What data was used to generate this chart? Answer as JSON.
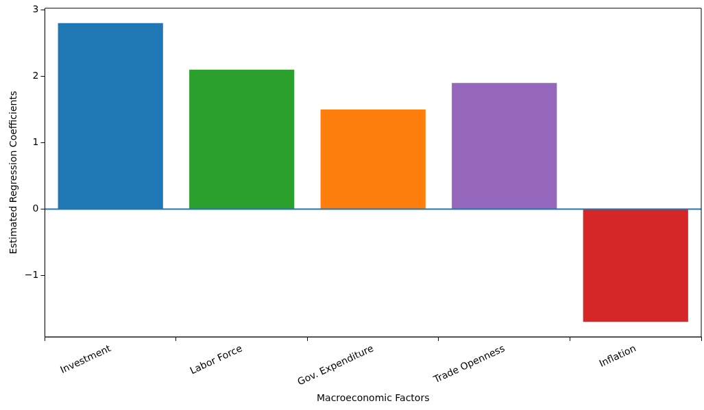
{
  "chart_data": {
    "type": "bar",
    "xlabel": "Macroeconomic Factors",
    "ylabel": "Estimated Regression Coefficients",
    "categories": [
      "Investment",
      "Labor Force",
      "Gov. Expenditure",
      "Trade Openness",
      "Inflation"
    ],
    "values": [
      2.8,
      2.1,
      1.5,
      1.9,
      -1.7
    ],
    "colors": [
      "#1f77b4",
      "#2ca02c",
      "#ff7f0e",
      "#9467bd",
      "#d62728"
    ],
    "ylim": [
      -1.925,
      3.025
    ],
    "yticks": [
      {
        "value": -1,
        "label": "−1"
      },
      0,
      1,
      2,
      3
    ],
    "ref_lines": [
      {
        "axis": "y",
        "value": 0,
        "color": "#1f77b4",
        "line_style": "solid"
      }
    ],
    "grid": false,
    "legend": false
  }
}
